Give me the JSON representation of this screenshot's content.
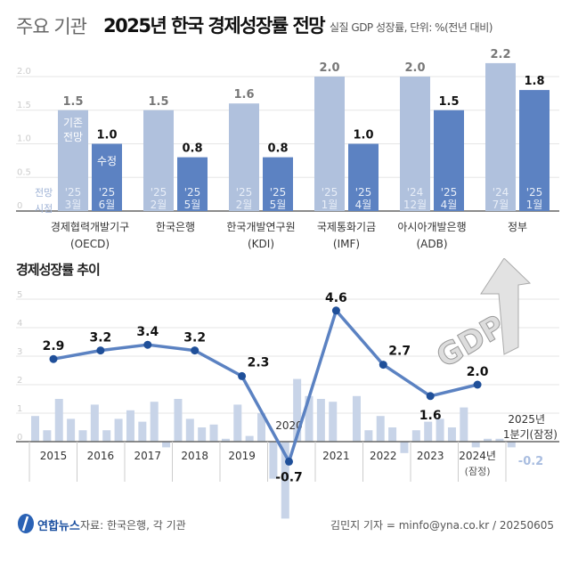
{
  "title": {
    "prefix": "주요 기관",
    "main": "2025년 한국 경제성장률 전망",
    "subtitle": "실질 GDP 성장률, 단위: %(전년 대비)"
  },
  "colors": {
    "prior": "#b0c1dd",
    "revised": "#5c82c2",
    "line": "#5b82c2",
    "point": "#1f4f99",
    "quarter_bar": "#c8d4e8"
  },
  "chart_data": [
    {
      "type": "bar",
      "ylim": [
        0,
        2.2
      ],
      "yticks": [
        "0",
        "0.5",
        "1.0",
        "1.5",
        "2.0"
      ],
      "row_label": [
        "전망",
        "시점"
      ],
      "prior_label": [
        "기존",
        "전망"
      ],
      "revised_label": "수정",
      "categories": [
        {
          "name": "경제협력개발기구",
          "abbr": "(OECD)"
        },
        {
          "name": "한국은행",
          "abbr": ""
        },
        {
          "name": "한국개발연구원",
          "abbr": "(KDI)"
        },
        {
          "name": "국제통화기금",
          "abbr": "(IMF)"
        },
        {
          "name": "아시아개발은행",
          "abbr": "(ADB)"
        },
        {
          "name": "정부",
          "abbr": ""
        }
      ],
      "series": [
        {
          "values": [
            1.5,
            1.5,
            1.6,
            2.0,
            2.0,
            2.2
          ],
          "labels": [
            "1.5",
            "1.5",
            "1.6",
            "2.0",
            "2.0",
            "2.2"
          ],
          "dates": [
            [
              "'25",
              "3월"
            ],
            [
              "'25",
              "2월"
            ],
            [
              "'25",
              "2월"
            ],
            [
              "'25",
              "1월"
            ],
            [
              "'24",
              "12월"
            ],
            [
              "'24",
              "7월"
            ]
          ]
        },
        {
          "values": [
            1.0,
            0.8,
            0.8,
            1.0,
            1.5,
            1.8
          ],
          "labels": [
            "1.0",
            "0.8",
            "0.8",
            "1.0",
            "1.5",
            "1.8"
          ],
          "dates": [
            [
              "'25",
              "6월"
            ],
            [
              "'25",
              "5월"
            ],
            [
              "'25",
              "5월"
            ],
            [
              "'25",
              "4월"
            ],
            [
              "'25",
              "4월"
            ],
            [
              "'25",
              "1월"
            ]
          ]
        }
      ]
    },
    {
      "type": "line",
      "title": "경제성장률 추이",
      "ylim": [
        -0.7,
        5
      ],
      "yticks": [
        "0",
        "1",
        "2",
        "3",
        "4",
        "5"
      ],
      "x": [
        "2015",
        "2016",
        "2017",
        "2018",
        "2019",
        "2020",
        "2021",
        "2022",
        "2023",
        "2024년"
      ],
      "x_note_2024": "(잠정)",
      "values": [
        2.9,
        3.2,
        3.4,
        3.2,
        2.3,
        -0.7,
        4.6,
        2.7,
        1.6,
        2.0
      ],
      "labels": [
        "2.9",
        "3.2",
        "3.4",
        "3.2",
        "2.3",
        "-0.7",
        "4.6",
        "2.7",
        "1.6",
        "2.0"
      ],
      "quarterly": [
        0.9,
        0.4,
        1.5,
        0.8,
        0.4,
        1.3,
        0.4,
        0.8,
        1.1,
        0.7,
        1.4,
        -0.2,
        1.5,
        0.8,
        0.5,
        0.6,
        0.1,
        1.3,
        0.2,
        1.0,
        -1.3,
        -2.7,
        2.2,
        1.6,
        1.5,
        1.4,
        0.0,
        1.6,
        0.4,
        0.9,
        0.5,
        -0.4,
        0.4,
        0.7,
        0.8,
        0.5,
        1.2,
        -0.2,
        0.1,
        0.1
      ],
      "latest_quarter": {
        "value": -0.2,
        "label": "-0.2",
        "caption": [
          "2025년",
          "1분기(잠정)"
        ]
      }
    }
  ],
  "footer": {
    "logo": "연합뉴스",
    "source": "자료: 한국은행, 각 기관",
    "credit": "김민지 기자 = minfo@yna.co.kr / 20250605"
  },
  "illustration": {
    "text": "GDP"
  }
}
